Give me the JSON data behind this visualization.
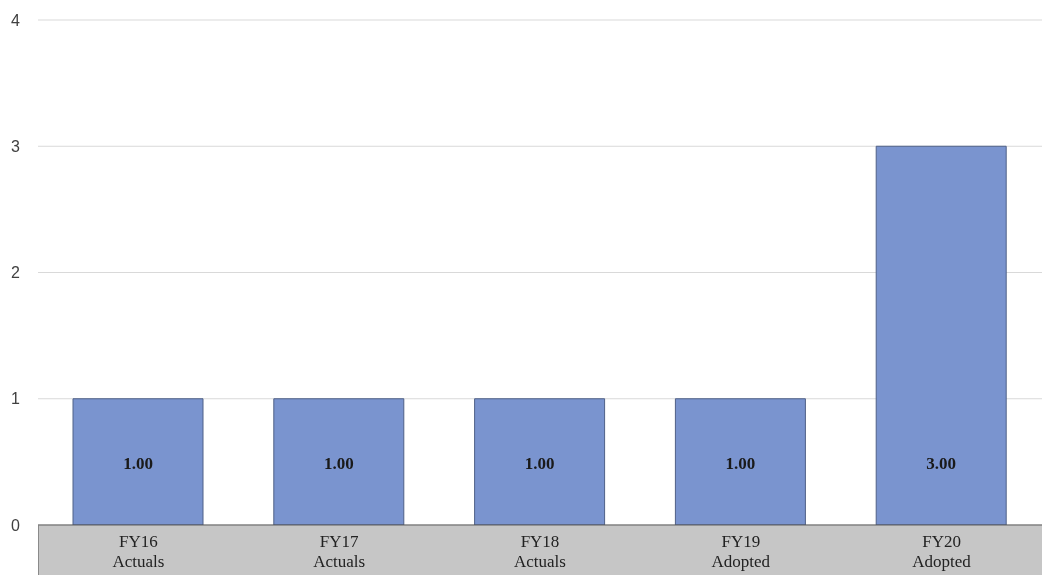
{
  "chart_data": {
    "type": "bar",
    "categories": [
      "FY16\nActuals",
      "FY17\nActuals",
      "FY18\nActuals",
      "FY19\nAdopted",
      "FY20\nAdopted"
    ],
    "values": [
      1,
      1,
      1,
      1,
      3
    ],
    "color": "#7a94cf",
    "value_labels": [
      "1.00",
      "1.00",
      "1.00",
      "1.00",
      "3.00"
    ],
    "ylim": [
      0,
      4
    ],
    "yticks": [
      0,
      1,
      2,
      3,
      4
    ],
    "grid": "y"
  }
}
